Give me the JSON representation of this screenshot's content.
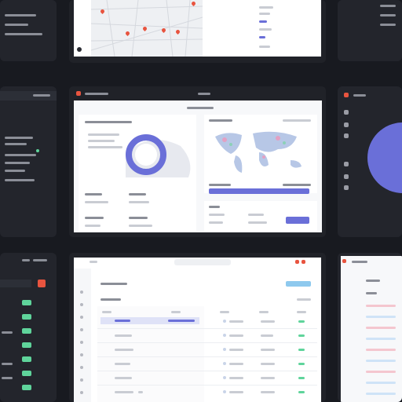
{
  "colors": {
    "background": "#181a20",
    "accent": "#6a6fd8",
    "brand": "#e8543f",
    "success": "#5fd49b"
  },
  "icons": {
    "app": "app-logo-icon",
    "settings": "gear-icon",
    "user": "user-icon"
  }
}
